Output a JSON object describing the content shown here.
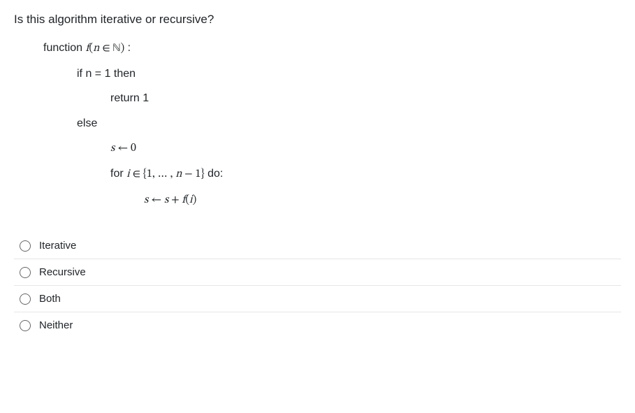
{
  "question": "Is this algorithm iterative or recursive?",
  "pseudo": {
    "l1_prefix": "function ",
    "l1_math_f": "f",
    "l1_math_open": "(",
    "l1_math_n": "n",
    "l1_math_in": " ∈ ",
    "l1_math_N": "ℕ",
    "l1_math_close": ")",
    "l1_suffix": " :",
    "l2": "if n = 1 then",
    "l3": "return 1",
    "l4": "else",
    "l5_s": "s",
    "l5_arrow": " ← ",
    "l5_zero": "0",
    "l6_for": "for ",
    "l6_i": "i",
    "l6_in": " ∈ ",
    "l6_set_open": "{",
    "l6_set_body": "1, … , ",
    "l6_n": "n",
    "l6_minus": " − ",
    "l6_one": "1",
    "l6_set_close": "}",
    "l6_do": "  do:",
    "l7_s1": "s",
    "l7_arrow": " ← ",
    "l7_s2": "s",
    "l7_plus": " + ",
    "l7_f": "f",
    "l7_open": "(",
    "l7_i": "i",
    "l7_close": ")"
  },
  "options": [
    "Iterative",
    "Recursive",
    "Both",
    "Neither"
  ]
}
